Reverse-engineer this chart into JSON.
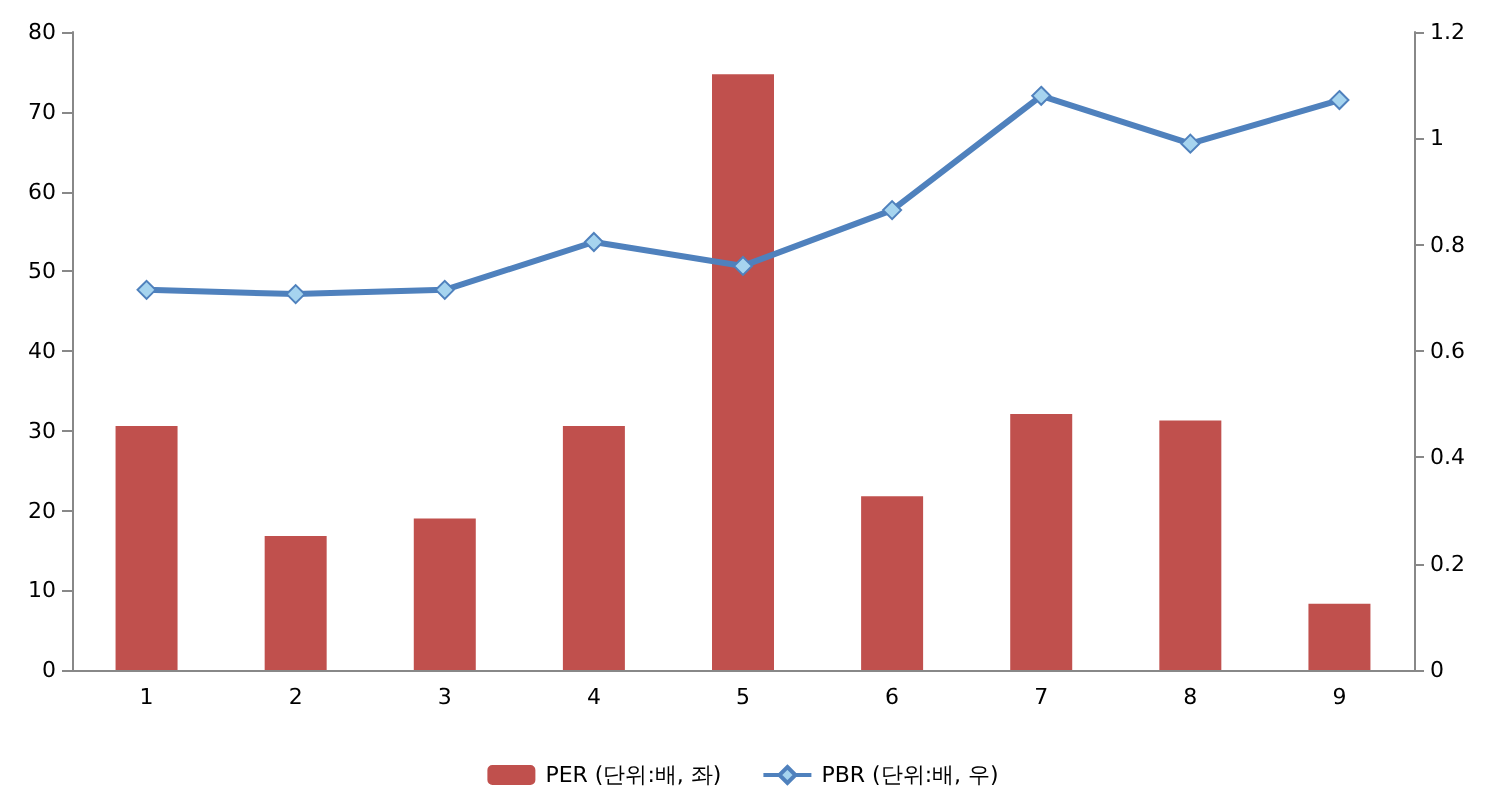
{
  "chart_data": {
    "type": "bar",
    "categories": [
      "1",
      "2",
      "3",
      "4",
      "5",
      "6",
      "7",
      "8",
      "9"
    ],
    "series": [
      {
        "name": "PER (단위:배, 좌)",
        "color": "#c0504d",
        "values": [
          30.6,
          16.8,
          19.0,
          30.6,
          74.7,
          21.8,
          32.1,
          31.3,
          8.3
        ]
      },
      {
        "name": "PBR (단위:배, 우)",
        "type": "line",
        "axis": "y2",
        "color": "#4f81bd",
        "marker": "diamond",
        "values": [
          0.715,
          0.707,
          0.715,
          0.805,
          0.76,
          0.865,
          1.08,
          0.99,
          1.072
        ]
      }
    ],
    "ylim": [
      0,
      80
    ],
    "yticks": [
      0,
      10,
      20,
      30,
      40,
      50,
      60,
      70,
      80
    ],
    "y2lim": [
      0,
      1.2
    ],
    "y2ticks": [
      0,
      0.2,
      0.4,
      0.6,
      0.8,
      1,
      1.2
    ],
    "grid": false,
    "legend": "bottom"
  }
}
